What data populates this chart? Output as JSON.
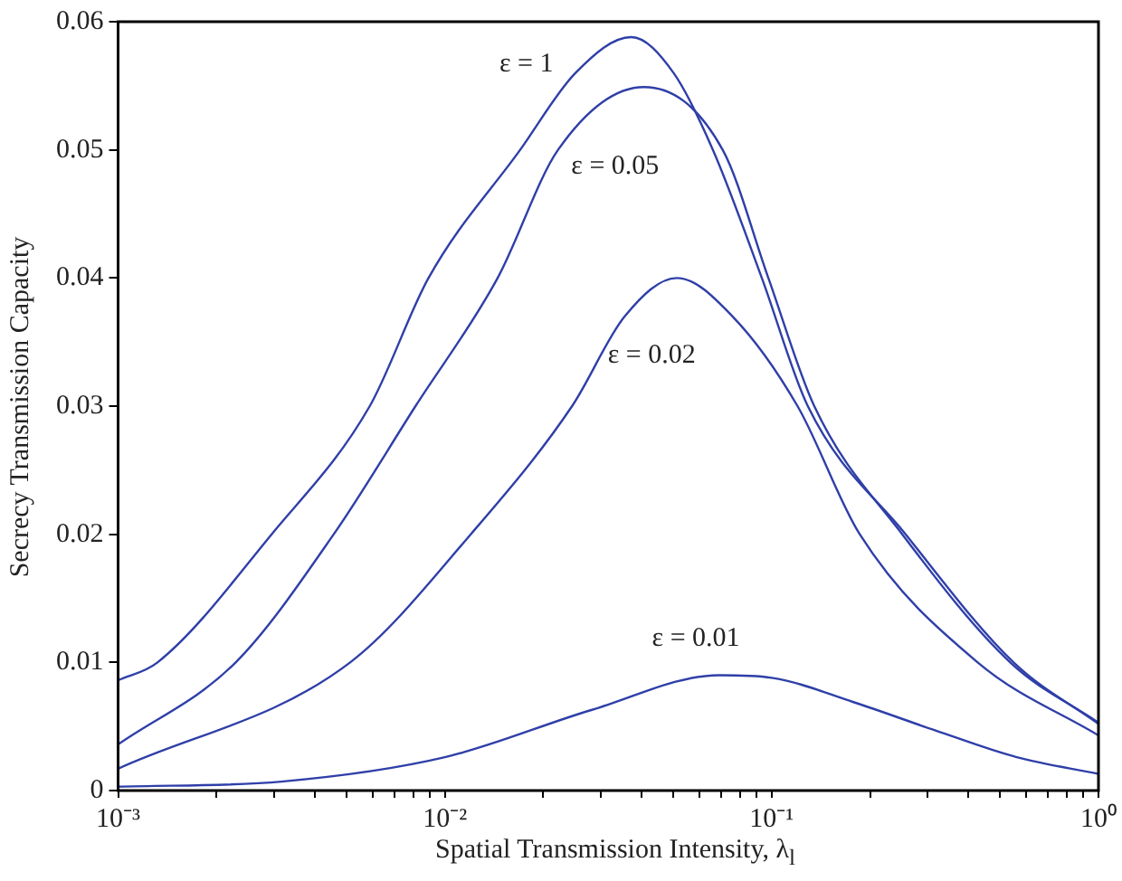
{
  "chart_data": {
    "type": "line",
    "xlabel": "Spatial Transmission Intensity, λ$_{l}$",
    "ylabel": "Secrecy Transmission Capacity",
    "log": "x",
    "xlim": [
      0.001,
      1
    ],
    "xticks": [
      {
        "value": 0.001,
        "label": "10⁻³"
      },
      {
        "value": 0.002,
        "label": null
      },
      {
        "value": 0.003,
        "label": null
      },
      {
        "value": 0.004,
        "label": null
      },
      {
        "value": 0.005,
        "label": null
      },
      {
        "value": 0.006,
        "label": null
      },
      {
        "value": 0.007,
        "label": null
      },
      {
        "value": 0.008,
        "label": null
      },
      {
        "value": 0.009,
        "label": null
      },
      {
        "value": 0.01,
        "label": "10⁻²"
      },
      {
        "value": 0.02,
        "label": null
      },
      {
        "value": 0.03,
        "label": null
      },
      {
        "value": 0.04,
        "label": null
      },
      {
        "value": 0.05,
        "label": null
      },
      {
        "value": 0.06,
        "label": null
      },
      {
        "value": 0.07,
        "label": null
      },
      {
        "value": 0.08,
        "label": null
      },
      {
        "value": 0.09,
        "label": null
      },
      {
        "value": 0.1,
        "label": "10⁻¹"
      },
      {
        "value": 0.2,
        "label": null
      },
      {
        "value": 0.3,
        "label": null
      },
      {
        "value": 0.4,
        "label": null
      },
      {
        "value": 0.5,
        "label": null
      },
      {
        "value": 0.6,
        "label": null
      },
      {
        "value": 0.7,
        "label": null
      },
      {
        "value": 0.8,
        "label": null
      },
      {
        "value": 0.9,
        "label": null
      },
      {
        "value": 1,
        "label": "10⁰"
      }
    ],
    "ylim": [
      0,
      0.06
    ],
    "yticks": [
      0,
      0.01,
      0.02,
      0.03,
      0.04,
      0.05,
      0.06
    ],
    "grid": false,
    "legend": false,
    "marker": "none",
    "line_style": "solid",
    "series": [
      {
        "name": "ε = 1",
        "color": "#2f3fa8",
        "x": [
          0.001,
          0.00132,
          0.00295,
          0.00589,
          0.00891,
          0.017,
          0.0251,
          0.0372,
          0.0501,
          0.0661,
          0.0933,
          0.129,
          0.257,
          0.55,
          1
        ],
        "values": [
          0.0086,
          0.01,
          0.02,
          0.03,
          0.04,
          0.05,
          0.056,
          0.0588,
          0.056,
          0.05,
          0.04,
          0.03,
          0.02,
          0.01,
          0.0052
        ]
      },
      {
        "name": "ε = 0.05",
        "color": "#2f3fa8",
        "x": [
          0.001,
          0.00229,
          0.00457,
          0.00813,
          0.0145,
          0.0222,
          0.0407,
          0.0708,
          0.0977,
          0.135,
          0.251,
          0.537,
          1
        ],
        "values": [
          0.0036,
          0.01,
          0.02,
          0.03,
          0.04,
          0.05,
          0.0549,
          0.05,
          0.04,
          0.03,
          0.02,
          0.01,
          0.0053
        ]
      },
      {
        "name": "ε = 0.02",
        "color": "#2f3fa8",
        "x": [
          0.001,
          0.00513,
          0.012,
          0.0245,
          0.0355,
          0.0513,
          0.0759,
          0.12,
          0.186,
          0.427,
          1
        ],
        "values": [
          0.0017,
          0.01,
          0.02,
          0.03,
          0.037,
          0.04,
          0.037,
          0.03,
          0.02,
          0.01,
          0.0043
        ]
      },
      {
        "name": "ε = 0.01",
        "color": "#2f3fa8",
        "x": [
          0.001,
          0.00316,
          0.01,
          0.0282,
          0.0692,
          0.1,
          0.178,
          0.316,
          0.562,
          1
        ],
        "values": [
          0.0003,
          0.0007,
          0.0026,
          0.0063,
          0.009,
          0.0088,
          0.0069,
          0.0047,
          0.0026,
          0.0013
        ]
      }
    ]
  }
}
